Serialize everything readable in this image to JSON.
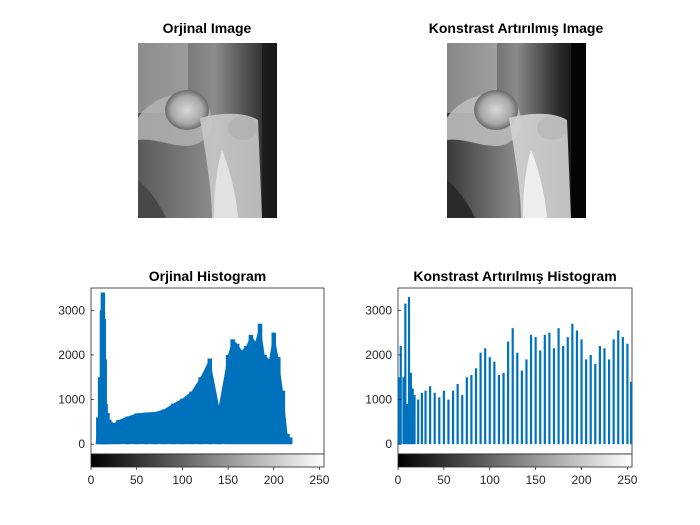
{
  "panels": {
    "original_image_title": "Orjinal Image",
    "enhanced_image_title": "Konstrast Artırılmış Image"
  },
  "chart_data": [
    {
      "type": "bar",
      "title": "Orjinal Histogram",
      "xlabel": "",
      "ylabel": "",
      "xlim": [
        0,
        255
      ],
      "ylim": [
        -220,
        3500
      ],
      "x_ticks": [
        "0",
        "50",
        "100",
        "150",
        "200",
        "250"
      ],
      "y_ticks": [
        "0",
        "1000",
        "2000",
        "3000"
      ],
      "grayscale_colorbar": true,
      "series": [
        {
          "x": [
            5,
            8,
            10,
            12,
            13,
            14,
            15,
            16,
            18,
            20,
            25,
            30,
            40,
            50,
            60,
            70,
            80,
            90,
            100,
            110,
            120,
            130,
            140,
            150,
            155,
            160,
            165,
            170,
            175,
            180,
            185,
            190,
            195,
            200,
            205,
            210,
            215,
            218,
            220
          ],
          "values": [
            0,
            600,
            1500,
            3000,
            3400,
            2800,
            1900,
            900,
            700,
            550,
            470,
            540,
            620,
            690,
            710,
            720,
            780,
            910,
            1020,
            1180,
            1500,
            1920,
            860,
            2000,
            2350,
            2250,
            2100,
            2200,
            2450,
            2300,
            2700,
            2000,
            1900,
            2500,
            1950,
            1200,
            230,
            150,
            0
          ],
          "color": "#0072BD"
        }
      ]
    },
    {
      "type": "bar",
      "title": "Konstrast Artırılmış Histogram",
      "xlabel": "",
      "ylabel": "",
      "xlim": [
        0,
        255
      ],
      "ylim": [
        -220,
        3500
      ],
      "x_ticks": [
        "0",
        "50",
        "100",
        "150",
        "200",
        "250"
      ],
      "y_ticks": [
        "0",
        "1000",
        "2000",
        "3000"
      ],
      "grayscale_colorbar": true,
      "series": [
        {
          "x": [
            1,
            3,
            6,
            8,
            10,
            12,
            14,
            16,
            18,
            22,
            26,
            30,
            35,
            40,
            45,
            50,
            55,
            60,
            65,
            70,
            75,
            80,
            85,
            90,
            95,
            100,
            105,
            110,
            115,
            120,
            125,
            130,
            135,
            140,
            145,
            150,
            155,
            160,
            165,
            170,
            175,
            180,
            185,
            190,
            195,
            200,
            205,
            210,
            215,
            220,
            225,
            230,
            235,
            240,
            245,
            250,
            254
          ],
          "values": [
            1500,
            2200,
            1500,
            3150,
            900,
            3300,
            1600,
            1250,
            1100,
            1000,
            1150,
            1200,
            1300,
            1150,
            1050,
            1200,
            1000,
            1200,
            1350,
            1100,
            1500,
            1550,
            1700,
            2050,
            2150,
            1950,
            1850,
            1550,
            1600,
            2300,
            2600,
            2050,
            1650,
            1900,
            2450,
            2400,
            2100,
            2450,
            2500,
            2150,
            2600,
            2200,
            2400,
            2700,
            2550,
            2350,
            1900,
            2000,
            1800,
            2200,
            2150,
            1900,
            2350,
            2550,
            2400,
            2250,
            1400
          ],
          "color": "#0072BD"
        }
      ]
    }
  ]
}
